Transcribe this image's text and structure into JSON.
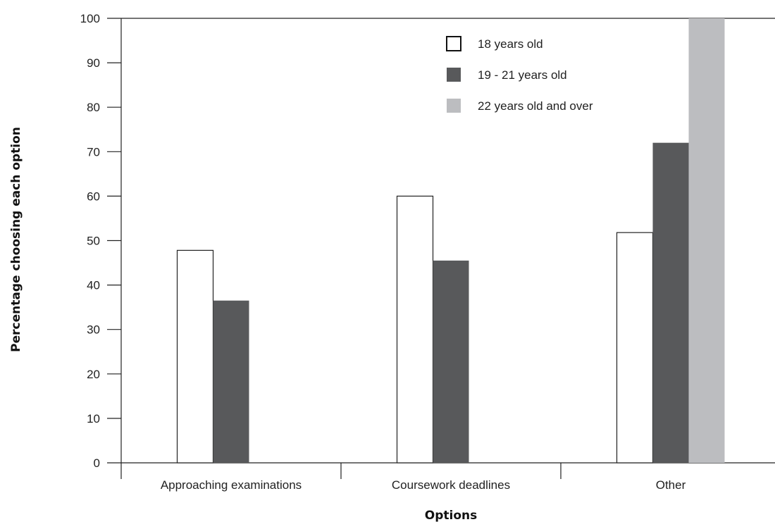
{
  "chart_data": {
    "type": "bar",
    "categories": [
      "Approaching examinations",
      "Coursework deadlines",
      "Other"
    ],
    "series": [
      {
        "name": "18 years old",
        "values": [
          47.8,
          60,
          51.8
        ],
        "color": "#ffffff"
      },
      {
        "name": "19 - 21 years old",
        "values": [
          36.5,
          45.5,
          72
        ],
        "color": "#58595b"
      },
      {
        "name": "22 years old and over",
        "values": [
          null,
          null,
          100
        ],
        "color": "#bcbdc0"
      }
    ],
    "xlabel": "Options",
    "ylabel": "Percentage choosing each option",
    "ylim": [
      0,
      100
    ],
    "yticks": [
      0,
      10,
      20,
      30,
      40,
      50,
      60,
      70,
      80,
      90,
      100
    ],
    "grid": false,
    "legend_position": "top-right"
  }
}
